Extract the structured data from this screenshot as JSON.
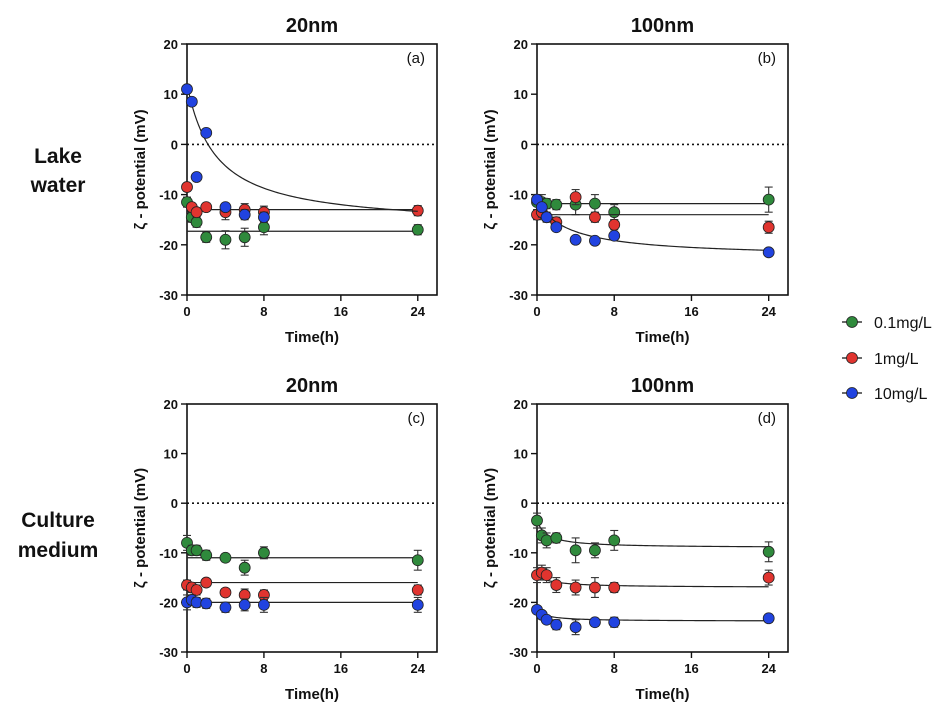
{
  "row_labels": [
    {
      "lines": [
        "Lake",
        "water"
      ]
    },
    {
      "lines": [
        "Culture",
        "medium"
      ]
    }
  ],
  "colors": {
    "0.1mg/L": "#2f8a3c",
    "1mg/L": "#e0342f",
    "10mg/L": "#2143e0"
  },
  "legend": [
    {
      "label": "0.1mg/L",
      "color": "#2f8a3c"
    },
    {
      "label": "1mg/L",
      "color": "#e0342f"
    },
    {
      "label": "10mg/L",
      "color": "#2143e0"
    }
  ],
  "chart_data": [
    {
      "type": "scatter",
      "title": "20nm",
      "tag": "(a)",
      "xlabel": "Time(h)",
      "ylabel": "ζ - potential (mV)",
      "xlim": [
        0,
        26
      ],
      "ylim": [
        -30,
        20
      ],
      "xticks": [
        0,
        8,
        16,
        24
      ],
      "yticks": [
        20,
        10,
        0,
        -10,
        -20,
        -30
      ],
      "reference_line": 0,
      "series": [
        {
          "name": "0.1mg/L",
          "color": "#2f8a3c",
          "x": [
            0,
            0.5,
            1,
            2,
            4,
            6,
            8,
            24
          ],
          "y": [
            -11.5,
            -14.5,
            -15.5,
            -18.5,
            -19,
            -18.5,
            -16.5,
            -17
          ],
          "err": [
            1.0,
            1.0,
            1.0,
            1.0,
            1.8,
            1.8,
            1.5,
            1.0
          ],
          "fit": [
            -17.3,
            -17.3
          ]
        },
        {
          "name": "1mg/L",
          "color": "#e0342f",
          "x": [
            0,
            0.5,
            1,
            2,
            4,
            6,
            8,
            24
          ],
          "y": [
            -8.5,
            -12.5,
            -13.5,
            -12.5,
            -13.5,
            -13,
            -13.5,
            -13.2
          ],
          "err": [
            0.8,
            0.8,
            0.8,
            0.8,
            1.5,
            1.2,
            1.2,
            1.0
          ],
          "fit": [
            -13,
            -13
          ]
        },
        {
          "name": "10mg/L",
          "color": "#2143e0",
          "x": [
            0,
            0.5,
            1,
            2,
            4,
            6,
            8
          ],
          "y": [
            11,
            8.5,
            -6.5,
            2.3,
            -12.5,
            -14,
            -14.5
          ],
          "err": [
            0,
            0,
            0,
            0,
            0.8,
            1.0,
            1.0
          ],
          "fit": [
            12,
            -16.5,
            3
          ]
        }
      ]
    },
    {
      "type": "scatter",
      "title": "100nm",
      "tag": "(b)",
      "xlabel": "Time(h)",
      "ylabel": "ζ - potential (mV)",
      "xlim": [
        0,
        26
      ],
      "ylim": [
        -30,
        20
      ],
      "xticks": [
        0,
        8,
        16,
        24
      ],
      "yticks": [
        20,
        10,
        0,
        -10,
        -20,
        -30
      ],
      "reference_line": 0,
      "series": [
        {
          "name": "0.1mg/L",
          "color": "#2f8a3c",
          "x": [
            0,
            0.5,
            1,
            2,
            4,
            6,
            8,
            24
          ],
          "y": [
            -11.5,
            -11.5,
            -11.8,
            -12,
            -12,
            -11.8,
            -13.5,
            -11
          ],
          "err": [
            1.5,
            1.5,
            1.0,
            1.0,
            2.0,
            1.8,
            1.5,
            2.5
          ],
          "fit": [
            -11.8,
            -11.8
          ]
        },
        {
          "name": "1mg/L",
          "color": "#e0342f",
          "x": [
            0,
            0.5,
            1,
            2,
            4,
            6,
            8,
            24
          ],
          "y": [
            -14,
            -13.5,
            -14.5,
            -15.5,
            -10.5,
            -14.5,
            -16,
            -16.5
          ],
          "err": [
            1.0,
            1.0,
            1.0,
            1.0,
            1.5,
            1.0,
            1.0,
            1.2
          ],
          "fit": [
            -14,
            -14
          ]
        },
        {
          "name": "10mg/L",
          "color": "#2143e0",
          "x": [
            0,
            0.5,
            1,
            2,
            4,
            6,
            8,
            24
          ],
          "y": [
            -11,
            -12.5,
            -14.5,
            -16.5,
            -19,
            -19.2,
            -18.2,
            -21.5
          ],
          "err": [
            0,
            0,
            0,
            0,
            0,
            0,
            0,
            0
          ],
          "fit": [
            -11.5,
            -22.5,
            3.5
          ]
        }
      ]
    },
    {
      "type": "scatter",
      "title": "20nm",
      "tag": "(c)",
      "xlabel": "Time(h)",
      "ylabel": "ζ - potential (mV)",
      "xlim": [
        0,
        26
      ],
      "ylim": [
        -30,
        20
      ],
      "xticks": [
        0,
        8,
        16,
        24
      ],
      "yticks": [
        20,
        10,
        0,
        -10,
        -20,
        -30
      ],
      "reference_line": 0,
      "series": [
        {
          "name": "0.1mg/L",
          "color": "#2f8a3c",
          "x": [
            0,
            0.5,
            1,
            2,
            4,
            6,
            8,
            24
          ],
          "y": [
            -8,
            -9.5,
            -9.5,
            -10.5,
            -11,
            -13,
            -10,
            -11.5
          ],
          "err": [
            1.5,
            1.0,
            1.0,
            1.0,
            0.8,
            1.5,
            1.2,
            2.0
          ],
          "fit": [
            -11,
            -11
          ]
        },
        {
          "name": "1mg/L",
          "color": "#e0342f",
          "x": [
            0,
            0.5,
            1,
            2,
            4,
            6,
            8,
            24
          ],
          "y": [
            -16.5,
            -17,
            -17.5,
            -16,
            -18,
            -18.5,
            -18.5,
            -17.5
          ],
          "err": [
            1.0,
            1.0,
            1.0,
            0.8,
            0.8,
            1.2,
            1.0,
            1.0
          ],
          "fit": [
            -16,
            -16
          ]
        },
        {
          "name": "10mg/L",
          "color": "#2143e0",
          "x": [
            0,
            0.5,
            1,
            2,
            4,
            6,
            8,
            24
          ],
          "y": [
            -20,
            -19.5,
            -20,
            -20.2,
            -21,
            -20.5,
            -20.5,
            -20.5
          ],
          "err": [
            1.5,
            1.0,
            1.0,
            1.0,
            1.0,
            1.2,
            1.5,
            1.5
          ],
          "fit": [
            -20,
            -20
          ]
        }
      ]
    },
    {
      "type": "scatter",
      "title": "100nm",
      "tag": "(d)",
      "xlabel": "Time(h)",
      "ylabel": "ζ - potential (mV)",
      "xlim": [
        0,
        26
      ],
      "ylim": [
        -30,
        20
      ],
      "xticks": [
        0,
        8,
        16,
        24
      ],
      "yticks": [
        20,
        10,
        0,
        -10,
        -20,
        -30
      ],
      "reference_line": 0,
      "series": [
        {
          "name": "0.1mg/L",
          "color": "#2f8a3c",
          "x": [
            0,
            0.5,
            1,
            2,
            4,
            6,
            8,
            24
          ],
          "y": [
            -3.5,
            -6.5,
            -7.5,
            -7,
            -9.5,
            -9.5,
            -7.5,
            -9.8
          ],
          "err": [
            1.5,
            1.5,
            1.5,
            1.0,
            2.5,
            1.5,
            2.0,
            2.0
          ],
          "fit": [
            -3.5,
            -9,
            1
          ]
        },
        {
          "name": "1mg/L",
          "color": "#e0342f",
          "x": [
            0,
            0.5,
            1,
            2,
            4,
            6,
            8,
            24
          ],
          "y": [
            -14.5,
            -14,
            -14.5,
            -16.5,
            -17,
            -17,
            -17,
            -15
          ],
          "err": [
            1.5,
            1.5,
            1.5,
            1.5,
            1.5,
            2.0,
            1.0,
            1.5
          ],
          "fit": [
            -14.5,
            -17,
            1.5
          ]
        },
        {
          "name": "10mg/L",
          "color": "#2143e0",
          "x": [
            0,
            0.5,
            1,
            2,
            4,
            6,
            8,
            24
          ],
          "y": [
            -21.5,
            -22.5,
            -23.5,
            -24.5,
            -25,
            -24,
            -24,
            -23.2
          ],
          "err": [
            0,
            0,
            0,
            1.0,
            1.5,
            0.8,
            1.0,
            0.8
          ],
          "fit": [
            -21.5,
            -23.8,
            1
          ]
        }
      ]
    }
  ]
}
